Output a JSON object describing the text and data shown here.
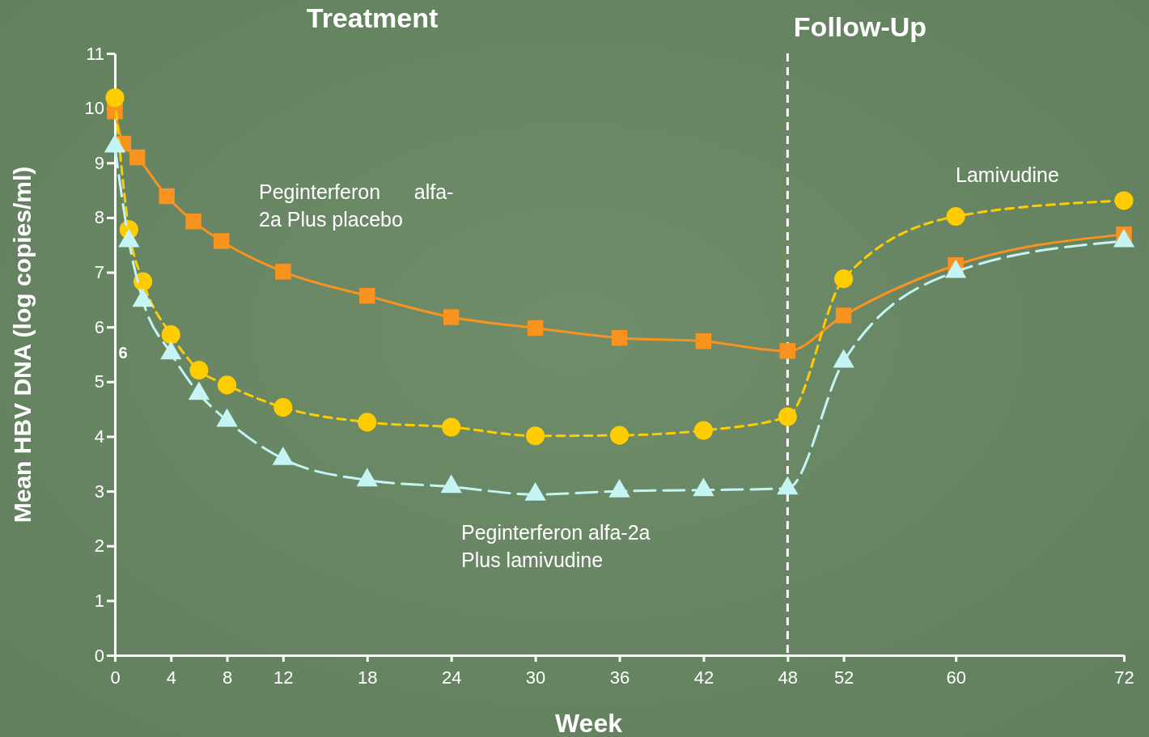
{
  "chart_data": {
    "type": "line",
    "xlabel": "Week",
    "ylabel": "Mean HBV DNA (log copies/ml)",
    "xlim": [
      0,
      72
    ],
    "ylim": [
      0,
      11
    ],
    "xticks": [
      0,
      4,
      8,
      12,
      18,
      24,
      30,
      36,
      42,
      48,
      52,
      60,
      72
    ],
    "yticks": [
      0,
      1,
      2,
      3,
      4,
      5,
      6,
      7,
      8,
      9,
      10,
      11
    ],
    "grid": false,
    "ref_lines": [
      {
        "axis": "x",
        "value": 48,
        "color": "#ffffff",
        "line_style": "dashed"
      }
    ],
    "annotations": [
      "Treatment",
      "Follow-Up",
      "6"
    ],
    "series": [
      {
        "name": "Peginterferon      alfa-\n2a Plus placebo",
        "color": "#f7931e",
        "marker": "square",
        "line_style": "solid",
        "x": [
          0,
          0.6,
          1.6,
          3.7,
          5.6,
          7.6,
          12,
          18,
          24,
          30,
          36,
          42,
          48,
          52,
          60,
          72
        ],
        "values": [
          9.94,
          9.35,
          9.1,
          8.39,
          7.93,
          7.57,
          7.01,
          6.57,
          6.18,
          5.98,
          5.8,
          5.74,
          5.56,
          6.21,
          7.13,
          7.69
        ]
      },
      {
        "name": "Lamivudine",
        "color": "#ffcc00",
        "marker": "circle",
        "line_style": "dashed",
        "x": [
          0,
          1,
          2,
          4,
          6,
          8,
          12,
          18,
          24,
          30,
          36,
          42,
          48,
          52,
          60,
          72
        ],
        "values": [
          10.19,
          7.78,
          6.83,
          5.86,
          5.21,
          4.94,
          4.53,
          4.26,
          4.17,
          4.01,
          4.02,
          4.11,
          4.36,
          6.88,
          8.02,
          8.31
        ]
      },
      {
        "name": "Peginterferon alfa-2a\nPlus lamivudine",
        "color": "#c4f4f4",
        "marker": "triangle",
        "line_style": "longdash",
        "x": [
          0,
          1,
          2,
          4,
          6,
          8,
          12,
          18,
          24,
          30,
          36,
          42,
          48,
          52,
          60,
          72
        ],
        "values": [
          9.3,
          7.57,
          6.48,
          5.52,
          4.78,
          4.29,
          3.59,
          3.2,
          3.08,
          2.94,
          3.0,
          3.02,
          3.05,
          5.37,
          7.01,
          7.57
        ]
      }
    ]
  }
}
